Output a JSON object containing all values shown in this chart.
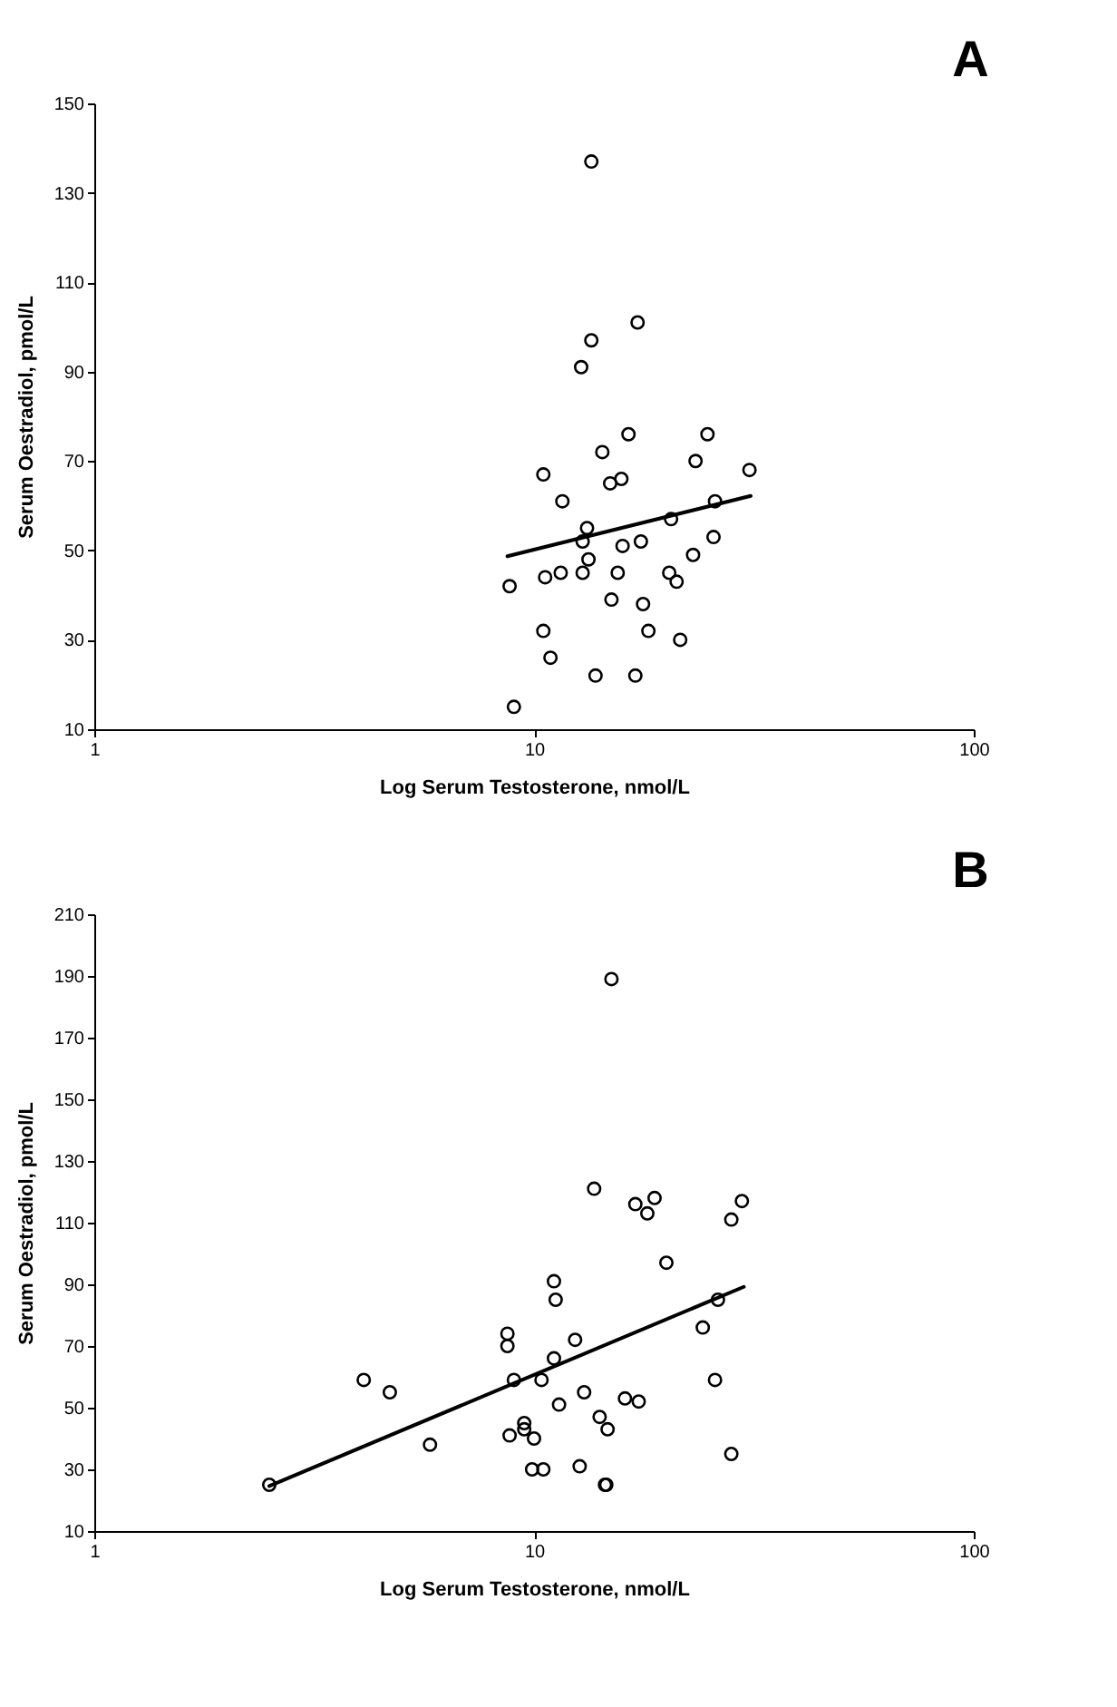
{
  "chart_data": [
    {
      "type": "scatter",
      "title": "A",
      "xlabel": "Log Serum Testosterone, nmol/L",
      "ylabel": "Serum Oestradiol, pmol/L",
      "log": "x",
      "xlim": [
        1,
        100
      ],
      "xticks": [
        1,
        10,
        100
      ],
      "ylim": [
        10,
        150
      ],
      "yticks": [
        10,
        30,
        50,
        70,
        90,
        110,
        130,
        150
      ],
      "grid": false,
      "series": [
        {
          "type": "scatter",
          "marker": "circle",
          "color": "#000000",
          "x": [
            13.5,
            17.2,
            13.5,
            12.8,
            16.4,
            24.8,
            14.3,
            23.3,
            30.9,
            10.5,
            14.9,
            15.8,
            11.6,
            25.8,
            20.5,
            13.2,
            12.9,
            15.9,
            17.5,
            25.6,
            23,
            13.3,
            12.9,
            11.5,
            10.6,
            8.8,
            15.5,
            20.3,
            21.1,
            15,
            17.7,
            10.5,
            18.2,
            21.5,
            10.9,
            13.8,
            17,
            9
          ],
          "values": [
            137,
            101,
            97,
            91,
            76,
            76,
            72,
            70,
            68,
            67,
            65,
            66,
            61,
            61,
            57,
            55,
            52,
            51,
            52,
            53,
            49,
            48,
            45,
            45,
            44,
            42,
            45,
            45,
            43,
            39,
            38,
            32,
            32,
            30,
            26,
            22,
            22,
            15
          ]
        },
        {
          "type": "line",
          "color": "#000000",
          "x": [
            8.7,
            31.1
          ],
          "values": [
            48.7,
            62.2
          ]
        }
      ]
    },
    {
      "type": "scatter",
      "title": "B",
      "xlabel": "Log Serum Testosterone, nmol/L",
      "ylabel": "Serum Oestradiol, pmol/L",
      "log": "x",
      "xlim": [
        1,
        100
      ],
      "xticks": [
        1,
        10,
        100
      ],
      "ylim": [
        10,
        210
      ],
      "yticks": [
        10,
        30,
        50,
        70,
        90,
        110,
        130,
        150,
        170,
        190,
        210
      ],
      "grid": false,
      "series": [
        {
          "type": "scatter",
          "marker": "circle",
          "color": "#000000",
          "x": [
            15,
            13.7,
            17,
            18.8,
            18.1,
            29.7,
            28.1,
            20,
            11.1,
            11.2,
            26.2,
            8.7,
            8.7,
            12.4,
            24.2,
            11.1,
            4.1,
            4.7,
            9,
            10.4,
            25.8,
            13,
            16.1,
            17.3,
            11.4,
            14.1,
            9.5,
            9.5,
            14.7,
            8.8,
            10,
            5.8,
            28.1,
            12.7,
            9.9,
            10.5,
            14.5,
            14.6,
            2.5
          ],
          "values": [
            189,
            121,
            116,
            118,
            113,
            117,
            111,
            97,
            91,
            85,
            85,
            74,
            70,
            72,
            76,
            66,
            59,
            55,
            59,
            59,
            59,
            55,
            53,
            52,
            51,
            47,
            45,
            43,
            43,
            41,
            40,
            38,
            35,
            31,
            30,
            30,
            25,
            25,
            25
          ]
        },
        {
          "type": "line",
          "color": "#000000",
          "x": [
            2.5,
            30
          ],
          "values": [
            24.6,
            89.2
          ]
        }
      ]
    }
  ]
}
